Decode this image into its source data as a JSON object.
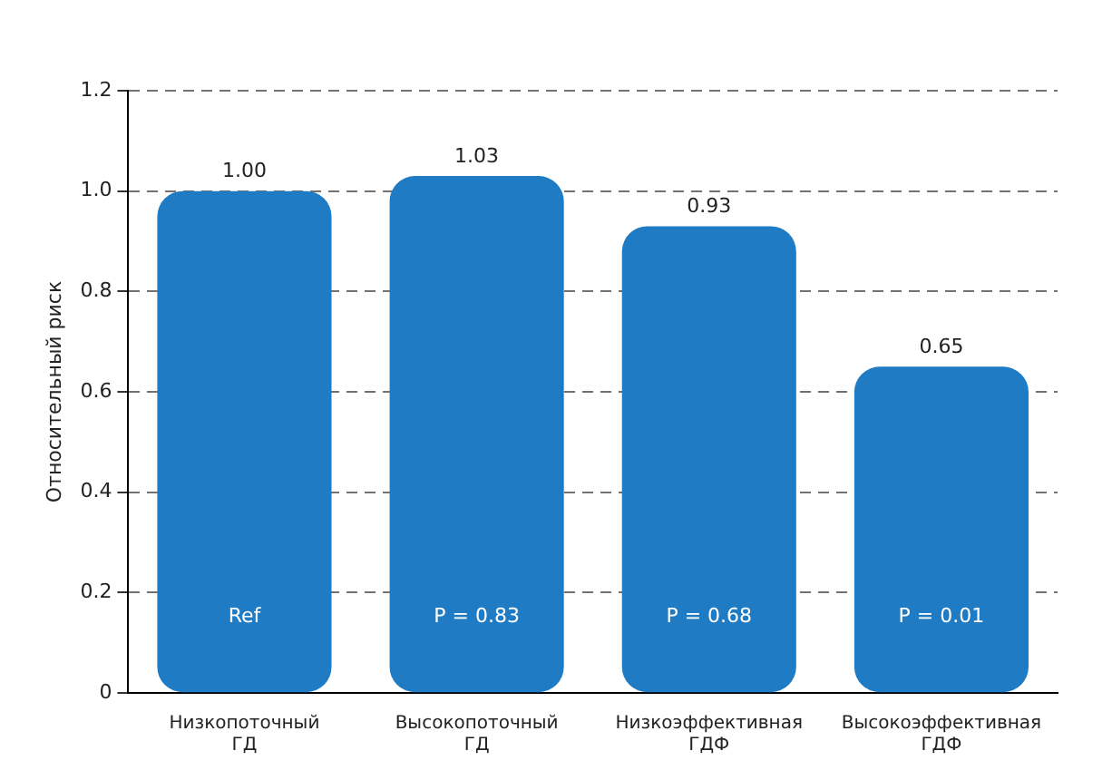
{
  "chart_data": {
    "type": "bar",
    "ylabel": "Относительный риск",
    "categories": [
      "Низкопоточный ГД",
      "Высокопоточный ГД",
      "Низкоэффективная ГДФ",
      "Высокоэффективная ГДФ"
    ],
    "values": [
      1.0,
      1.03,
      0.93,
      0.65
    ],
    "value_labels": [
      "1.00",
      "1.03",
      "0.93",
      "0.65"
    ],
    "color": "#1f7cc4",
    "ylim": [
      0,
      1.2
    ],
    "yticks": [
      0,
      0.2,
      0.4,
      0.6,
      0.8,
      {
        "value": 1,
        "label": "1.0"
      },
      1.2
    ],
    "grid": "y",
    "line_style": "dashed",
    "annotations": [
      "Ref",
      "P = 0.83",
      "P = 0.68",
      "P = 0.01"
    ]
  }
}
